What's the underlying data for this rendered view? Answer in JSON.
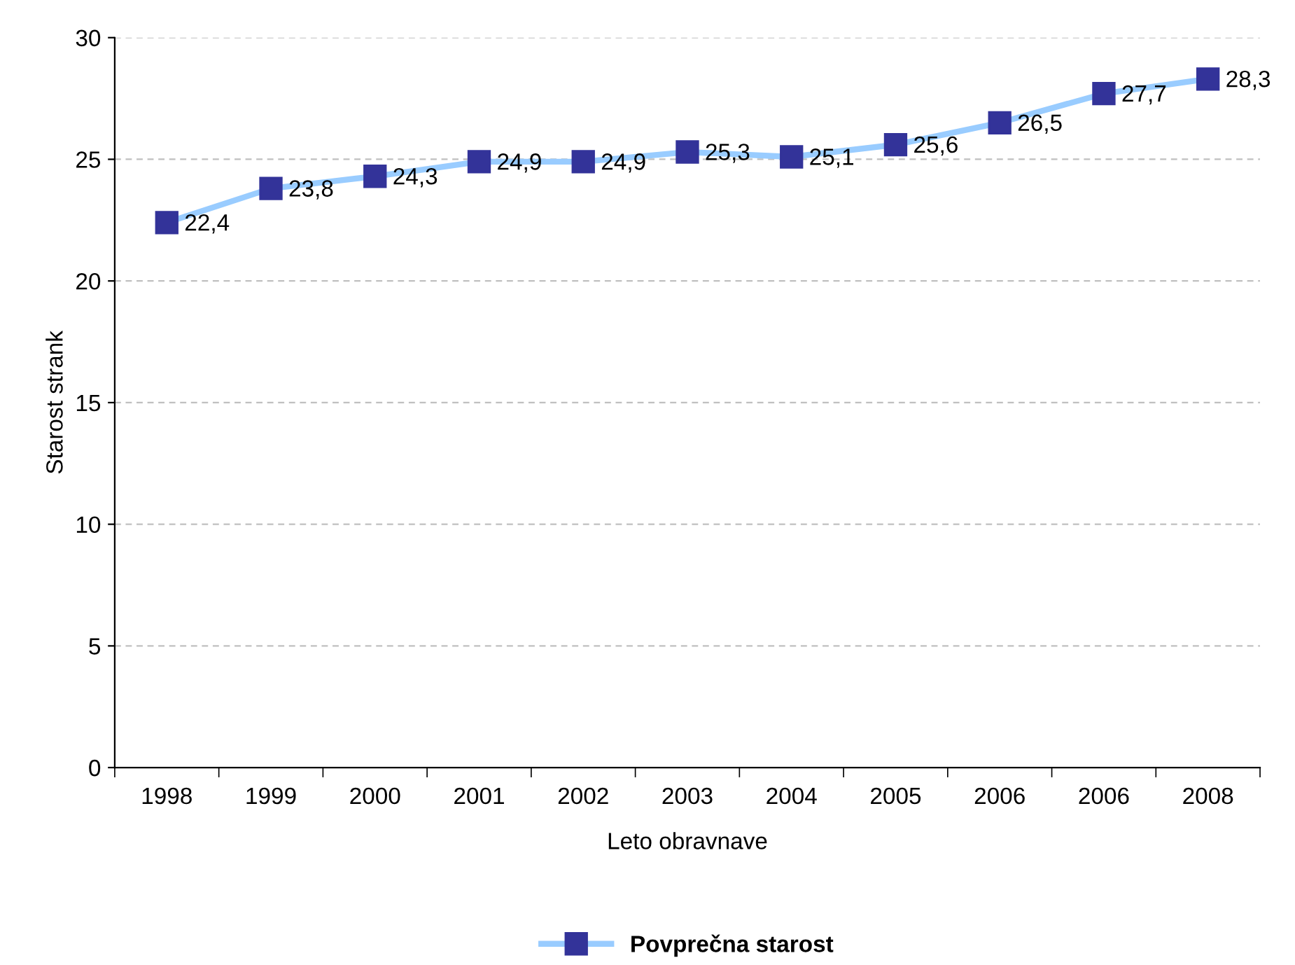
{
  "chart_data": {
    "type": "line",
    "xlabel": "Leto obravnave",
    "ylabel": "Starost strank",
    "categories": [
      "1998",
      "1999",
      "2000",
      "2001",
      "2002",
      "2003",
      "2004",
      "2005",
      "2006",
      "2006",
      "2008"
    ],
    "series": [
      {
        "name": "Povprečna starost",
        "color": "#99ccff",
        "colors": [
          "#333399",
          "#333399",
          "#333399",
          "#333399",
          "#333399",
          "#333399",
          "#333399",
          "#333399",
          "#333399",
          "#333399",
          "#333399"
        ],
        "values": [
          22.4,
          23.8,
          24.3,
          24.9,
          24.9,
          25.3,
          25.1,
          25.6,
          26.5,
          27.7,
          28.3
        ],
        "value_labels": [
          "22,4",
          "23,8",
          "24,3",
          "24,9",
          "24,9",
          "25,3",
          "25,1",
          "25,6",
          "26,5",
          "27,7",
          "28,3"
        ]
      }
    ],
    "ylim": [
      0,
      30
    ],
    "yticks": [
      0,
      5,
      10,
      15,
      20,
      25,
      30
    ],
    "grid": "y",
    "legend": "bottom",
    "marker": "square",
    "line_style": "solid"
  }
}
